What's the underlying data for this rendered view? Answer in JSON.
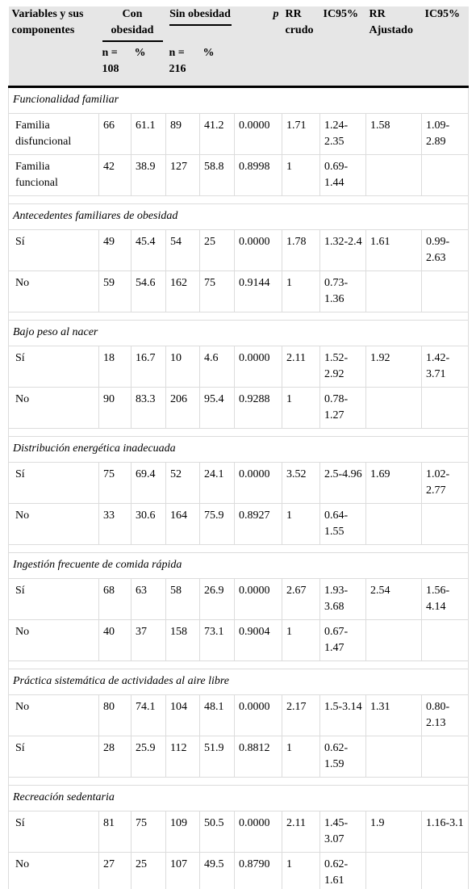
{
  "table": {
    "header": {
      "variables": "Variables y sus componentes",
      "con": "Con obesidad",
      "sin": "Sin obesidad",
      "p": "p",
      "rr_crudo": "RR crudo",
      "ic95_crudo": "IC95%",
      "rr_ajustado": "RR Ajustado",
      "ic95_ajustado": "IC95%",
      "n_con": "n = 108",
      "pct_con": "%",
      "n_sin": "n = 216",
      "pct_sin": "%"
    },
    "sections": [
      {
        "title": "Funcionalidad familiar",
        "rows": [
          [
            "Familia disfuncional",
            "66",
            "61.1",
            "89",
            "41.2",
            "0.0000",
            "1.71",
            "1.24-2.35",
            "1.58",
            "1.09-2.89"
          ],
          [
            "Familia funcional",
            "42",
            "38.9",
            "127",
            "58.8",
            "0.8998",
            "1",
            "0.69-1.44"
          ]
        ]
      },
      {
        "title": "Antecedentes familiares de obesidad",
        "rows": [
          [
            "Sí",
            "49",
            "45.4",
            "54",
            "25",
            "0.0000",
            "1.78",
            "1.32-2.4",
            "1.61",
            "0.99-2.63"
          ],
          [
            "No",
            "59",
            "54.6",
            "162",
            "75",
            "0.9144",
            "1",
            "0.73-1.36"
          ]
        ]
      },
      {
        "title": "Bajo peso al nacer",
        "rows": [
          [
            "Sí",
            "18",
            "16.7",
            "10",
            "4.6",
            "0.0000",
            "2.11",
            "1.52-2.92",
            "1.92",
            "1.42-3.71"
          ],
          [
            "No",
            "90",
            "83.3",
            "206",
            "95.4",
            "0.9288",
            "1",
            "0.78-1.27"
          ]
        ]
      },
      {
        "title": "Distribución energética inadecuada",
        "rows": [
          [
            "Sí",
            "75",
            "69.4",
            "52",
            "24.1",
            "0.0000",
            "3.52",
            "2.5-4.96",
            "1.69",
            "1.02-2.77"
          ],
          [
            "No",
            "33",
            "30.6",
            "164",
            "75.9",
            "0.8927",
            "1",
            "0.64-1.55"
          ]
        ]
      },
      {
        "title": "Ingestión frecuente de comida rápida",
        "rows": [
          [
            "Sí",
            "68",
            "63",
            "58",
            "26.9",
            "0.0000",
            "2.67",
            "1.93-3.68",
            "2.54",
            "1.56-4.14"
          ],
          [
            "No",
            "40",
            "37",
            "158",
            "73.1",
            "0.9004",
            "1",
            "0.67-1.47"
          ]
        ]
      },
      {
        "title": "Práctica sistemática de actividades al aire libre",
        "rows": [
          [
            "No",
            "80",
            "74.1",
            "104",
            "48.1",
            "0.0000",
            "2.17",
            "1.5-3.14",
            "1.31",
            "0.80-2.13"
          ],
          [
            "Sí",
            "28",
            "25.9",
            "112",
            "51.9",
            "0.8812",
            "1",
            "0.62-1.59"
          ]
        ]
      },
      {
        "title": "Recreación sedentaria",
        "rows": [
          [
            "Sí",
            "81",
            "75",
            "109",
            "50.5",
            "0.0000",
            "2.11",
            "1.45-3.07",
            "1.9",
            "1.16-3.1"
          ],
          [
            "No",
            "27",
            "25",
            "107",
            "49.5",
            "0.8790",
            "1",
            "0.62-1.61"
          ]
        ]
      }
    ]
  }
}
